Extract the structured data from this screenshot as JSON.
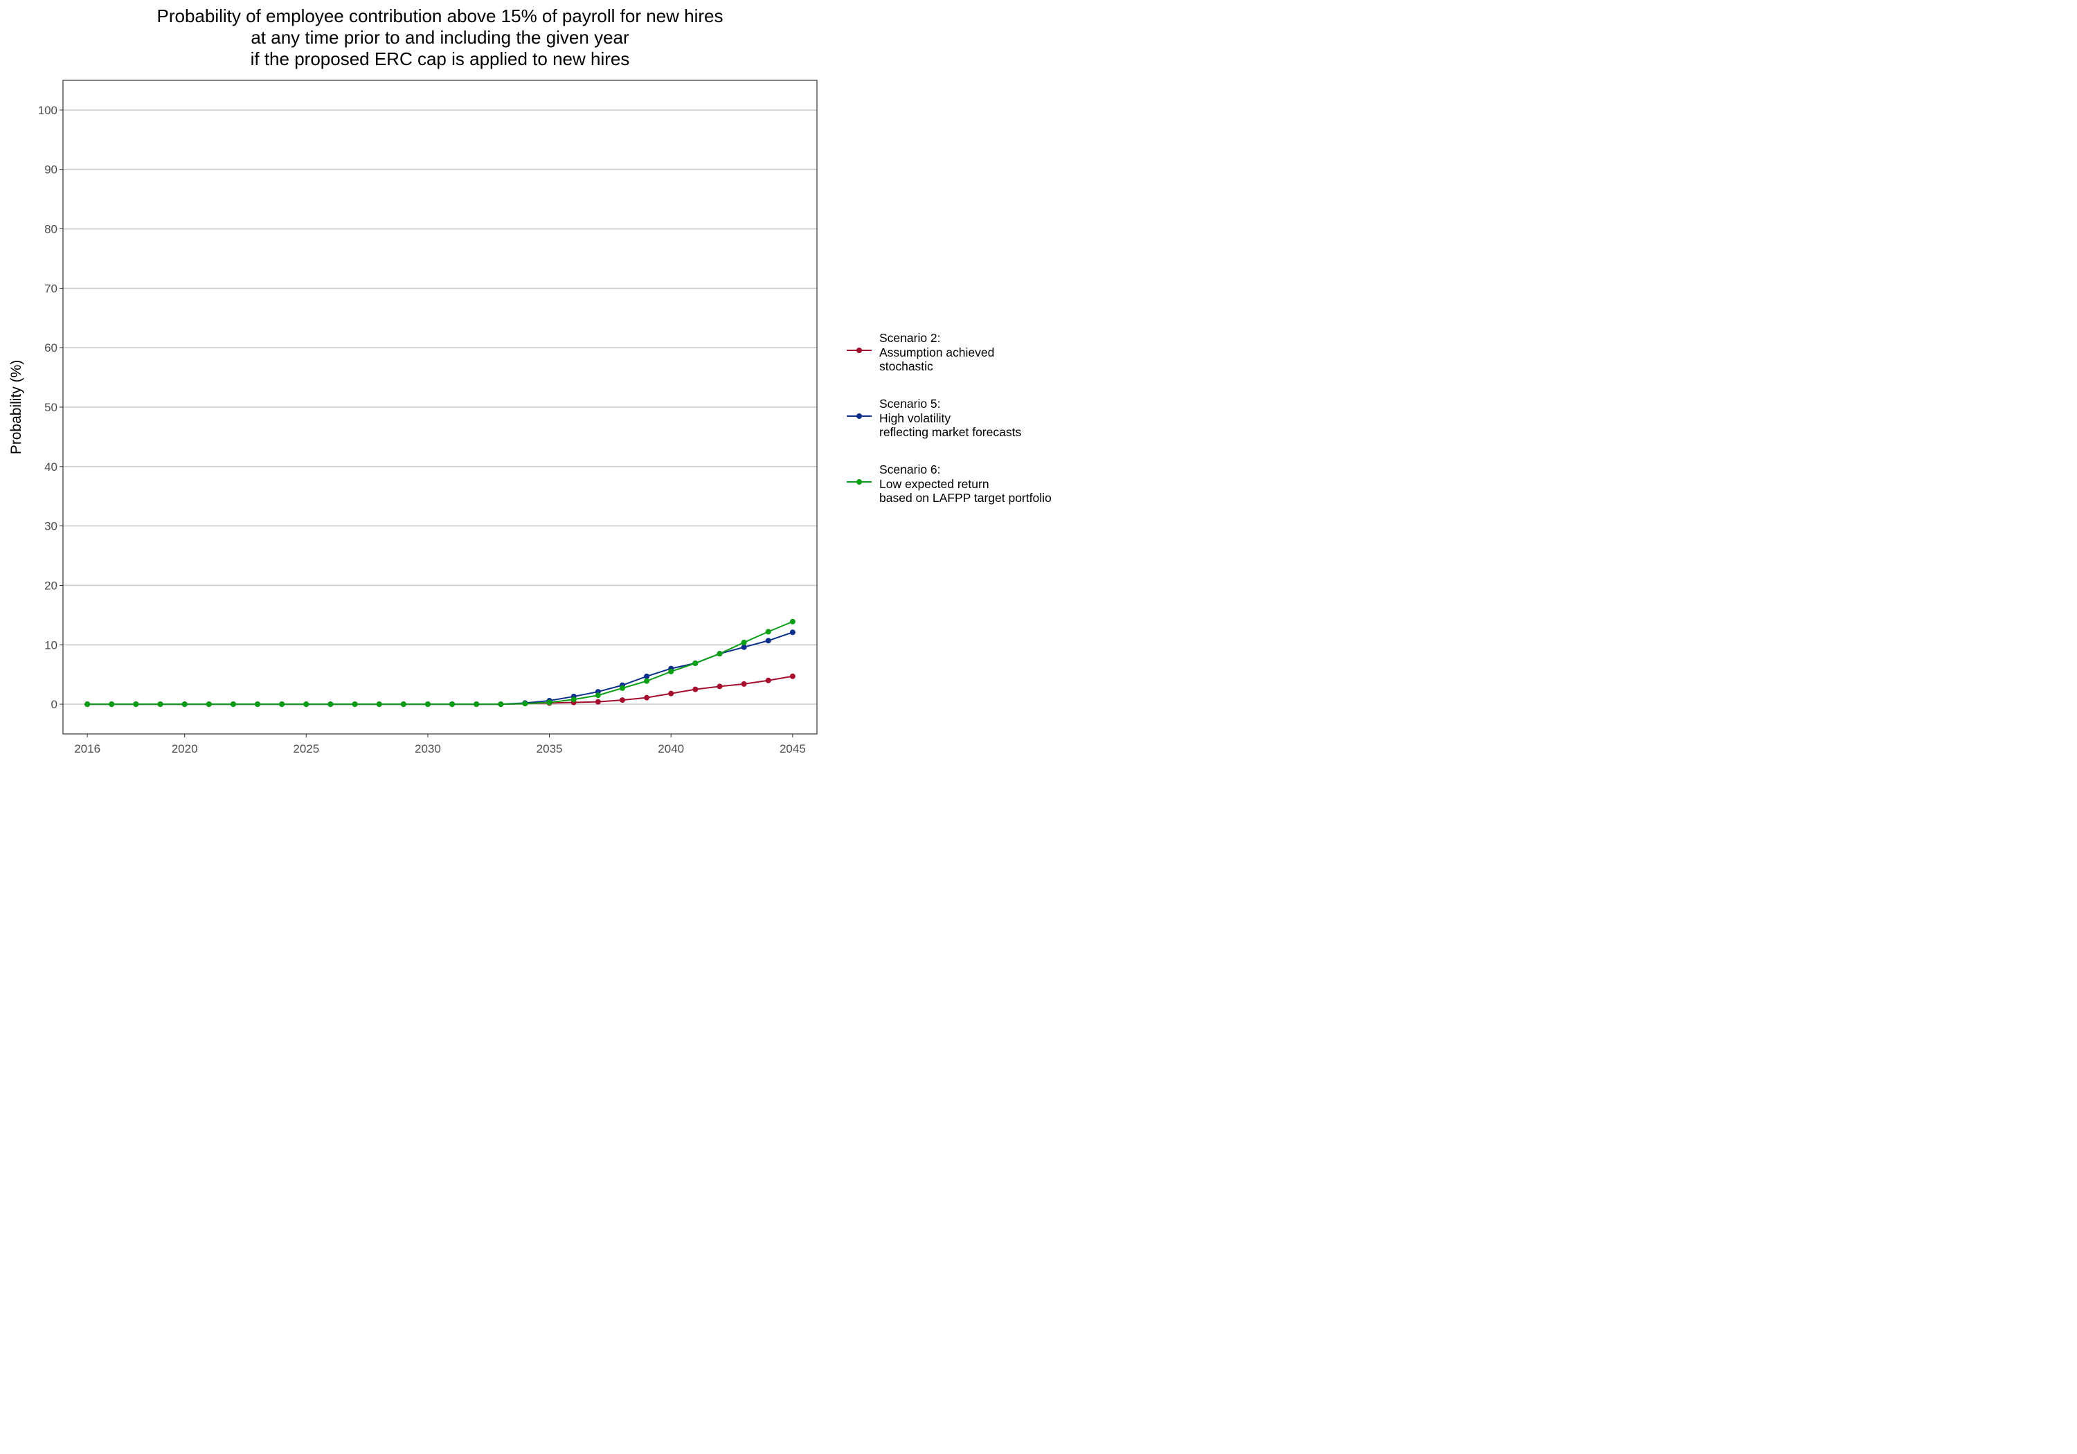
{
  "chart_data": {
    "type": "line",
    "title_lines": [
      "Probability of employee contribution above 15% of payroll for new hires",
      "at any time prior to and including the given year",
      "if the proposed ERC cap is applied to new hires"
    ],
    "xlabel": "",
    "ylabel": "Probability (%)",
    "xlim": [
      2015,
      2046
    ],
    "ylim": [
      -5,
      105
    ],
    "x_ticks": [
      2016,
      2020,
      2025,
      2030,
      2035,
      2040,
      2045
    ],
    "y_ticks": [
      0,
      10,
      20,
      30,
      40,
      50,
      60,
      70,
      80,
      90,
      100
    ],
    "grid": "horizontal major",
    "legend_position": "right",
    "x": [
      2016,
      2017,
      2018,
      2019,
      2020,
      2021,
      2022,
      2023,
      2024,
      2025,
      2026,
      2027,
      2028,
      2029,
      2030,
      2031,
      2032,
      2033,
      2034,
      2035,
      2036,
      2037,
      2038,
      2039,
      2040,
      2041,
      2042,
      2043,
      2044,
      2045
    ],
    "series": [
      {
        "name_lines": [
          "Scenario 2:",
          "Assumption achieved",
          "stochastic"
        ],
        "color": "#A50F2D",
        "values": [
          0,
          0,
          0,
          0,
          0,
          0,
          0,
          0,
          0,
          0,
          0,
          0,
          0,
          0,
          0,
          0,
          0,
          0,
          0.1,
          0.2,
          0.3,
          0.4,
          0.7,
          1.1,
          1.8,
          2.5,
          3.0,
          3.4,
          4.0,
          4.7
        ]
      },
      {
        "name_lines": [
          "Scenario 5:",
          "High volatility",
          "reflecting market forecasts"
        ],
        "color": "#0C2E8C",
        "values": [
          0,
          0,
          0,
          0,
          0,
          0,
          0,
          0,
          0,
          0,
          0,
          0,
          0,
          0,
          0,
          0,
          0,
          0,
          0.2,
          0.6,
          1.3,
          2.1,
          3.2,
          4.7,
          6.0,
          6.9,
          8.5,
          9.6,
          10.7,
          12.1
        ]
      },
      {
        "name_lines": [
          "Scenario 6:",
          "Low expected return",
          "based on LAFPP target portfolio"
        ],
        "color": "#0A9F14",
        "values": [
          0,
          0,
          0,
          0,
          0,
          0,
          0,
          0,
          0,
          0,
          0,
          0,
          0,
          0,
          0,
          0,
          0,
          0,
          0.1,
          0.3,
          0.8,
          1.5,
          2.7,
          3.9,
          5.5,
          6.9,
          8.5,
          10.4,
          12.2,
          13.9
        ]
      }
    ]
  }
}
